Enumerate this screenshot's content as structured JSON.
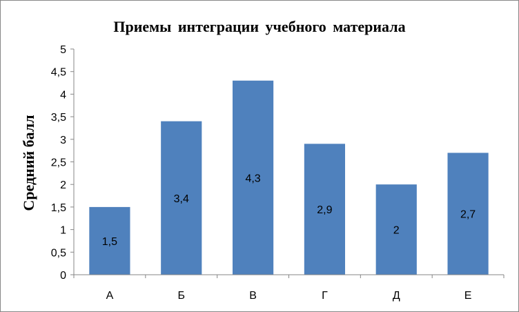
{
  "chart_data": {
    "type": "bar",
    "title": "Приемы интеграции учебного материала",
    "xlabel": "",
    "ylabel": "Средний балл",
    "categories": [
      "А",
      "Б",
      "В",
      "Г",
      "Д",
      "Е"
    ],
    "values": [
      1.5,
      3.4,
      4.3,
      2.9,
      2,
      2.7
    ],
    "value_labels": [
      "1,5",
      "3,4",
      "4,3",
      "2,9",
      "2",
      "2,7"
    ],
    "ylim": [
      0,
      5
    ],
    "yticks": [
      0,
      0.5,
      1,
      1.5,
      2,
      2.5,
      3,
      3.5,
      4,
      4.5,
      5
    ],
    "ytick_labels": [
      "0",
      "0,5",
      "1",
      "1,5",
      "2",
      "2,5",
      "3",
      "3,5",
      "4",
      "4,5",
      "5"
    ],
    "grid": false,
    "legend": "none",
    "bar_color": "#4f81bd",
    "axis_color": "#868686"
  }
}
